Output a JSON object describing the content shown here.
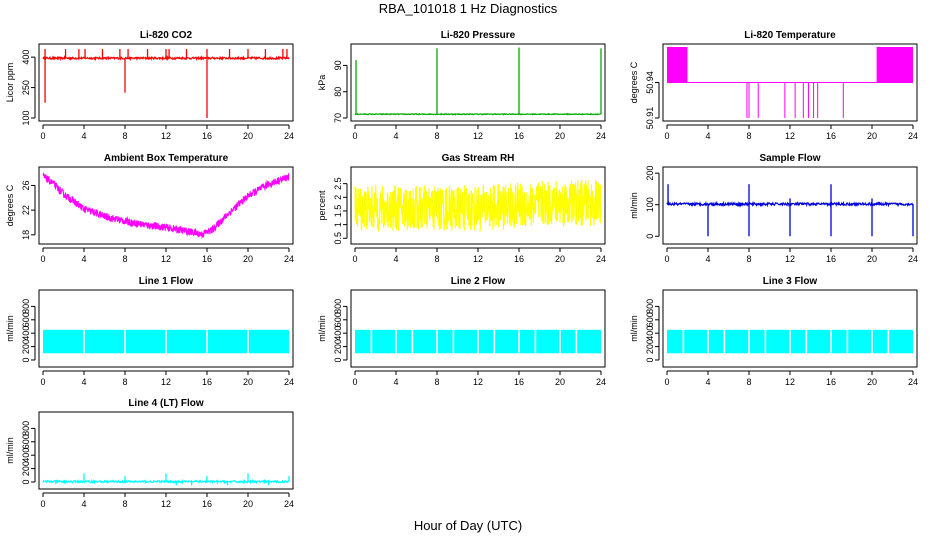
{
  "page": {
    "title": "RBA_101018  1 Hz Diagnostics",
    "xlabel": "Hour of Day (UTC)"
  },
  "chart_data": [
    {
      "type": "line",
      "title": "Li-820 CO2",
      "ylabel": "Licor ppm",
      "color": "#ff0000",
      "style": "spiky",
      "xlim": [
        0,
        24
      ],
      "ylim": [
        100,
        450
      ],
      "xticks": [
        0,
        4,
        8,
        12,
        16,
        20,
        24
      ],
      "yticks": [
        100,
        250,
        400
      ],
      "band": [
        390,
        400
      ],
      "spikes_up": [
        [
          0.2,
          440
        ],
        [
          2.2,
          440
        ],
        [
          3.5,
          440
        ],
        [
          4.1,
          440
        ],
        [
          5.8,
          440
        ],
        [
          7.5,
          440
        ],
        [
          8.3,
          440
        ],
        [
          10.2,
          440
        ],
        [
          12.0,
          440
        ],
        [
          12.3,
          440
        ],
        [
          14.0,
          440
        ],
        [
          16.0,
          440
        ],
        [
          18.2,
          440
        ],
        [
          20.0,
          440
        ],
        [
          21.7,
          440
        ],
        [
          23.4,
          440
        ],
        [
          23.8,
          440
        ]
      ],
      "spikes_down": [
        [
          0.2,
          175
        ],
        [
          8.0,
          225
        ],
        [
          16.0,
          100
        ]
      ]
    },
    {
      "type": "line",
      "title": "Li-820 Pressure",
      "ylabel": "kPa",
      "color": "#00aa00",
      "style": "spiky",
      "xlim": [
        0,
        24
      ],
      "ylim": [
        70,
        97
      ],
      "xticks": [
        0,
        4,
        8,
        12,
        16,
        20,
        24
      ],
      "yticks": [
        70,
        80,
        90
      ],
      "band": [
        71.3,
        71.6
      ],
      "spikes_up": [
        [
          0.1,
          92
        ],
        [
          8.0,
          96.5
        ],
        [
          16.0,
          96.8
        ],
        [
          24.0,
          96.5
        ]
      ],
      "spikes_down": []
    },
    {
      "type": "line",
      "title": "Li-820 Temperature",
      "ylabel": "degrees C",
      "color": "#ff00ff",
      "style": "temperature",
      "xlim": [
        0,
        24
      ],
      "ylim": [
        50.91,
        50.97
      ],
      "xticks": [
        0,
        4,
        8,
        12,
        16,
        20,
        24
      ],
      "yticks": [
        50.91,
        50.94
      ],
      "baseline": 50.94,
      "upper": 50.97,
      "noisy_ranges": [
        [
          0,
          2
        ],
        [
          20.5,
          24
        ]
      ],
      "upper_ticks": [
        20.5,
        20.8,
        21.1
      ],
      "dips": [
        [
          7.8,
          50.91
        ],
        [
          8.0,
          50.91
        ],
        [
          8.9,
          50.91
        ],
        [
          11.5,
          50.91
        ],
        [
          12.5,
          50.91
        ],
        [
          13.3,
          50.91
        ],
        [
          13.8,
          50.91
        ],
        [
          14.3,
          50.91
        ],
        [
          14.7,
          50.91
        ],
        [
          17.2,
          50.91
        ]
      ]
    },
    {
      "type": "line",
      "title": "Ambient Box Temperature",
      "ylabel": "degrees C",
      "color": "#ff00ff",
      "style": "band",
      "xlim": [
        0,
        24
      ],
      "ylim": [
        17,
        28.5
      ],
      "xticks": [
        0,
        4,
        8,
        12,
        16,
        20,
        24
      ],
      "yticks": [
        18,
        22,
        26
      ],
      "x": [
        0,
        1,
        2,
        4,
        6,
        8,
        10,
        12,
        14,
        15.5,
        16.5,
        18,
        20,
        22,
        24
      ],
      "center": [
        27.5,
        26.3,
        24.6,
        22.2,
        21.0,
        20.2,
        19.6,
        19.2,
        18.6,
        18.1,
        18.8,
        21.3,
        24.3,
        26.2,
        27.4
      ],
      "halfwidth": 0.6
    },
    {
      "type": "line",
      "title": "Gas Stream RH",
      "ylabel": "percent",
      "color": "#ffff00",
      "style": "band",
      "xlim": [
        0,
        24
      ],
      "ylim": [
        0.4,
        3.0
      ],
      "xticks": [
        0,
        4,
        8,
        12,
        16,
        20,
        24
      ],
      "yticks": [
        0.5,
        1.0,
        1.5,
        2.0,
        2.5
      ],
      "x": [
        0,
        4,
        8,
        12,
        16,
        20,
        24
      ],
      "center": [
        1.6,
        1.6,
        1.6,
        1.6,
        1.7,
        1.8,
        1.8
      ],
      "halfwidth": 0.85
    },
    {
      "type": "line",
      "title": "Sample Flow",
      "ylabel": "ml/min",
      "color": "#0000dd",
      "style": "spiky",
      "xlim": [
        0,
        24
      ],
      "ylim": [
        -15,
        210
      ],
      "xticks": [
        0,
        4,
        8,
        12,
        16,
        20,
        24
      ],
      "yticks": [
        0,
        100,
        200
      ],
      "band": [
        98,
        106
      ],
      "spikes_up": [
        [
          0.1,
          165
        ],
        [
          8.0,
          165
        ],
        [
          12.0,
          120
        ],
        [
          16.0,
          165
        ],
        [
          20.0,
          120
        ]
      ],
      "spikes_down": [
        [
          4.0,
          0
        ],
        [
          8.0,
          0
        ],
        [
          12.0,
          0
        ],
        [
          16.0,
          0
        ],
        [
          20.0,
          0
        ],
        [
          24.0,
          0
        ]
      ]
    },
    {
      "type": "area",
      "title": "Line 1 Flow",
      "ylabel": "ml/min",
      "color": "#00ffff",
      "style": "flowband",
      "xlim": [
        0,
        24
      ],
      "ylim": [
        -60,
        1000
      ],
      "xticks": [
        0,
        4,
        8,
        12,
        16,
        20,
        24
      ],
      "yticks": [
        0,
        200,
        400,
        600,
        800
      ],
      "band": [
        100,
        450
      ],
      "gaps": [
        4.0,
        8.0,
        12.0,
        16.0,
        20.0
      ]
    },
    {
      "type": "area",
      "title": "Line 2 Flow",
      "ylabel": "ml/min",
      "color": "#00ffff",
      "style": "flowband",
      "xlim": [
        0,
        24
      ],
      "ylim": [
        -60,
        1000
      ],
      "xticks": [
        0,
        4,
        8,
        12,
        16,
        20,
        24
      ],
      "yticks": [
        0,
        200,
        400,
        600,
        800
      ],
      "band": [
        100,
        450
      ],
      "gaps": [
        1.6,
        4.0,
        5.6,
        8.0,
        9.6,
        12.0,
        13.6,
        16.0,
        17.6,
        20.0,
        21.6
      ]
    },
    {
      "type": "area",
      "title": "Line 3 Flow",
      "ylabel": "ml/min",
      "color": "#00ffff",
      "style": "flowband",
      "xlim": [
        0,
        24
      ],
      "ylim": [
        -60,
        1000
      ],
      "xticks": [
        0,
        4,
        8,
        12,
        16,
        20,
        24
      ],
      "yticks": [
        0,
        200,
        400,
        600,
        800
      ],
      "band": [
        100,
        450
      ],
      "gaps": [
        1.6,
        4.0,
        5.6,
        8.0,
        9.6,
        12.0,
        13.6,
        16.0,
        17.6,
        20.0,
        21.6
      ]
    },
    {
      "type": "line",
      "title": "Line 4 (LT) Flow",
      "ylabel": "ml/min",
      "color": "#00ffff",
      "style": "spiky",
      "xlim": [
        0,
        24
      ],
      "ylim": [
        -60,
        1000
      ],
      "xticks": [
        0,
        4,
        8,
        12,
        16,
        20,
        24
      ],
      "yticks": [
        0,
        200,
        400,
        600,
        800
      ],
      "band": [
        -10,
        20
      ],
      "spikes_up": [
        [
          4.0,
          130
        ],
        [
          8.0,
          90
        ],
        [
          12.0,
          130
        ],
        [
          16.0,
          90
        ],
        [
          20.0,
          130
        ],
        [
          24.0,
          90
        ]
      ],
      "spikes_down": [
        [
          13.0,
          -50
        ],
        [
          14.5,
          -50
        ],
        [
          18.0,
          -50
        ],
        [
          22.0,
          -50
        ]
      ]
    }
  ]
}
